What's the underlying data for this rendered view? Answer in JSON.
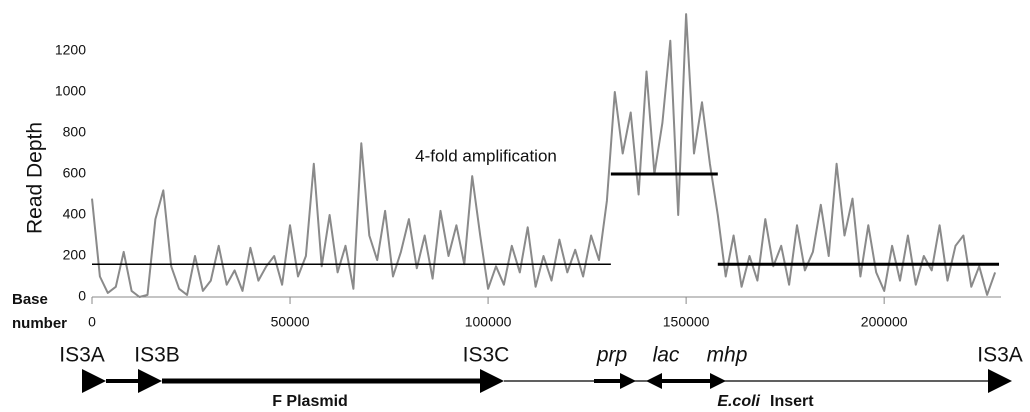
{
  "chart_data": {
    "type": "line",
    "y_label": "Read Depth",
    "x_label": [
      "Base",
      "number"
    ],
    "annotation": "4-fold amplification",
    "xlim": [
      0,
      229500
    ],
    "ylim": [
      0,
      1400
    ],
    "xticks": [
      0,
      50000,
      100000,
      150000,
      200000
    ],
    "yticks": [
      0,
      200,
      400,
      600,
      800,
      1000,
      1200
    ],
    "x": [
      0,
      2000,
      4000,
      6000,
      8000,
      10000,
      12000,
      14000,
      16000,
      18000,
      20000,
      22000,
      24000,
      26000,
      28000,
      30000,
      32000,
      34000,
      36000,
      38000,
      40000,
      42000,
      44000,
      46000,
      48000,
      50000,
      52000,
      54000,
      56000,
      58000,
      60000,
      62000,
      64000,
      66000,
      68000,
      70000,
      72000,
      74000,
      76000,
      78000,
      80000,
      82000,
      84000,
      86000,
      88000,
      90000,
      92000,
      94000,
      96000,
      98000,
      100000,
      102000,
      104000,
      106000,
      108000,
      110000,
      112000,
      114000,
      116000,
      118000,
      120000,
      122000,
      124000,
      126000,
      128000,
      130000,
      132000,
      134000,
      136000,
      138000,
      140000,
      142000,
      144000,
      146000,
      148000,
      150000,
      152000,
      154000,
      156000,
      158000,
      160000,
      162000,
      164000,
      166000,
      168000,
      170000,
      172000,
      174000,
      176000,
      178000,
      180000,
      182000,
      184000,
      186000,
      188000,
      190000,
      192000,
      194000,
      196000,
      198000,
      200000,
      202000,
      204000,
      206000,
      208000,
      210000,
      212000,
      214000,
      216000,
      218000,
      220000,
      222000,
      224000,
      226000,
      228000
    ],
    "series": [
      {
        "name": "Read depth",
        "color": "#8a8a8a",
        "values": [
          480,
          100,
          20,
          50,
          220,
          30,
          0,
          10,
          380,
          520,
          150,
          40,
          10,
          200,
          30,
          80,
          250,
          60,
          130,
          30,
          240,
          80,
          150,
          200,
          60,
          350,
          100,
          200,
          650,
          150,
          400,
          120,
          250,
          40,
          750,
          300,
          180,
          420,
          100,
          220,
          380,
          140,
          300,
          90,
          420,
          200,
          350,
          160,
          590,
          300,
          40,
          150,
          60,
          250,
          120,
          340,
          50,
          200,
          80,
          280,
          120,
          230,
          100,
          300,
          180,
          470,
          1000,
          700,
          900,
          500,
          1100,
          600,
          850,
          1250,
          400,
          1380,
          700,
          950,
          650,
          400,
          100,
          300,
          50,
          200,
          80,
          380,
          150,
          250,
          60,
          350,
          130,
          220,
          450,
          200,
          650,
          300,
          480,
          100,
          350,
          120,
          30,
          250,
          80,
          300,
          60,
          200,
          130,
          350,
          80,
          250,
          300,
          50,
          150,
          10,
          120
        ]
      }
    ],
    "reference_lines": [
      {
        "x": [
          0,
          131000
        ],
        "y": 160
      },
      {
        "x": [
          131000,
          158000
        ],
        "y": 600
      },
      {
        "x": [
          158000,
          229000
        ],
        "y": 160
      }
    ],
    "map_labels": {
      "is3a_left": "IS3A",
      "is3b": "IS3B",
      "is3c": "IS3C",
      "prp": "prp",
      "lac": "lac",
      "mhp": "mhp",
      "is3a_right": "IS3A",
      "f_plasmid": "F Plasmid",
      "ecoli": "E.coli",
      "insert": "Insert"
    }
  }
}
